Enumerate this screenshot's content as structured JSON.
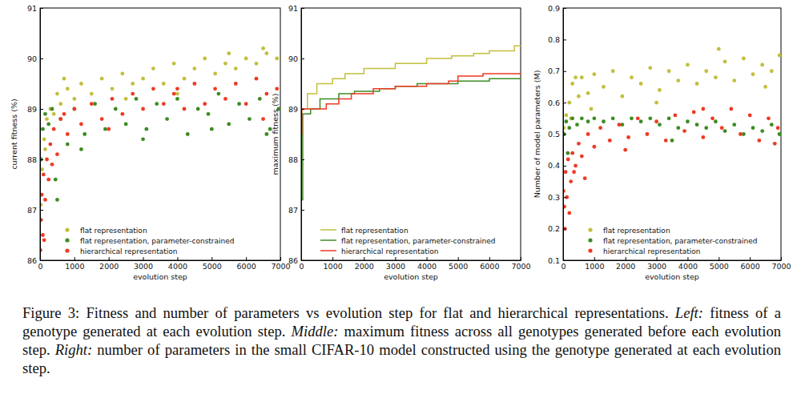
{
  "chart_data": [
    {
      "type": "scatter",
      "xlabel": "evolution step",
      "ylabel": "current fitness (%)",
      "xlim": [
        0,
        7000
      ],
      "xticks": [
        0,
        1000,
        2000,
        3000,
        4000,
        5000,
        6000,
        7000
      ],
      "ylim": [
        86,
        91
      ],
      "yticks": [
        86,
        87,
        88,
        89,
        90,
        91
      ],
      "legend": "lower left",
      "series": [
        {
          "name": "flat representation",
          "color": "#c2bf3c",
          "marker": "circle",
          "x": [
            20,
            60,
            120,
            200,
            300,
            400,
            500,
            600,
            800,
            1000,
            1200,
            1500,
            1800,
            2100,
            2400,
            2700,
            3000,
            3300,
            3600,
            3900,
            4200,
            4500,
            4800,
            5100,
            5400,
            5700,
            6000,
            6300,
            6600,
            6900,
            150,
            700,
            2500,
            4000,
            5500,
            6500
          ],
          "values": [
            87.1,
            87.8,
            88.4,
            88.8,
            89.0,
            88.9,
            89.3,
            89.1,
            89.4,
            89.2,
            89.5,
            89.3,
            89.6,
            89.4,
            89.7,
            89.5,
            89.6,
            89.8,
            89.5,
            89.9,
            89.6,
            89.8,
            90.0,
            89.7,
            89.9,
            89.8,
            90.0,
            89.9,
            90.1,
            90.0,
            88.2,
            89.6,
            89.2,
            89.3,
            90.1,
            90.2
          ]
        },
        {
          "name": "flat representation, parameter-constrained",
          "color": "#3d8c24",
          "marker": "circle",
          "x": [
            30,
            80,
            150,
            250,
            350,
            450,
            600,
            800,
            1000,
            1300,
            1600,
            1900,
            2200,
            2500,
            2800,
            3100,
            3400,
            3700,
            4000,
            4300,
            4600,
            4900,
            5200,
            5500,
            5800,
            6100,
            6400,
            6700,
            6950,
            500,
            1200,
            3000,
            5000,
            6600
          ],
          "values": [
            88.0,
            88.6,
            88.9,
            88.7,
            89.0,
            87.6,
            88.8,
            88.3,
            89.0,
            88.5,
            89.1,
            88.6,
            89.0,
            88.7,
            89.2,
            88.6,
            89.1,
            88.8,
            89.2,
            88.5,
            89.0,
            88.9,
            89.3,
            88.7,
            89.1,
            88.8,
            89.2,
            88.6,
            89.0,
            87.2,
            88.2,
            88.4,
            88.6,
            88.5
          ]
        },
        {
          "name": "hierarchical representation",
          "color": "#ee3a24",
          "marker": "circle",
          "x": [
            10,
            30,
            50,
            80,
            100,
            150,
            200,
            250,
            300,
            400,
            500,
            600,
            800,
            1000,
            1200,
            1500,
            1800,
            2100,
            2400,
            2700,
            3000,
            3300,
            3600,
            3900,
            4200,
            4500,
            4800,
            5100,
            5400,
            5700,
            6000,
            6300,
            6600,
            6900,
            120,
            350,
            700,
            2000,
            4000,
            6500
          ],
          "values": [
            86.2,
            86.8,
            87.3,
            86.5,
            87.7,
            87.2,
            88.0,
            87.6,
            88.3,
            88.6,
            88.1,
            88.8,
            88.5,
            89.0,
            88.7,
            89.1,
            88.8,
            89.2,
            88.9,
            89.3,
            89.0,
            89.4,
            89.1,
            89.3,
            89.0,
            89.5,
            89.1,
            89.4,
            89.2,
            89.5,
            89.1,
            89.6,
            89.3,
            89.4,
            86.4,
            87.9,
            88.9,
            88.6,
            89.4,
            88.8
          ]
        }
      ]
    },
    {
      "type": "line",
      "xlabel": "evolution step",
      "ylabel": "maximum fitness (%)",
      "xlim": [
        0,
        7000
      ],
      "xticks": [
        0,
        1000,
        2000,
        3000,
        4000,
        5000,
        6000,
        7000
      ],
      "ylim": [
        86,
        91
      ],
      "yticks": [
        86,
        87,
        88,
        89,
        90,
        91
      ],
      "legend": "lower left",
      "series": [
        {
          "name": "flat representation",
          "color": "#c2bf3c",
          "line_style": "steps",
          "x": [
            0,
            10,
            200,
            500,
            1000,
            1400,
            2000,
            3000,
            4000,
            4800,
            5500,
            6000,
            6800,
            7000
          ],
          "values": [
            87.2,
            89.0,
            89.3,
            89.5,
            89.6,
            89.7,
            89.8,
            89.9,
            90.0,
            90.05,
            90.1,
            90.15,
            90.25,
            90.25
          ]
        },
        {
          "name": "flat representation, parameter-constrained",
          "color": "#3d8c24",
          "line_style": "steps",
          "x": [
            0,
            50,
            300,
            600,
            1200,
            1700,
            2500,
            3000,
            3700,
            5000,
            6000,
            7000
          ],
          "values": [
            87.2,
            88.9,
            89.0,
            89.2,
            89.3,
            89.35,
            89.4,
            89.45,
            89.5,
            89.55,
            89.6,
            89.6
          ]
        },
        {
          "name": "hierarchical representation",
          "color": "#ee3a24",
          "line_style": "steps",
          "x": [
            0,
            20,
            800,
            1200,
            1600,
            2300,
            3000,
            4000,
            4700,
            5000,
            5800,
            7000
          ],
          "values": [
            88.5,
            89.0,
            89.1,
            89.2,
            89.3,
            89.4,
            89.45,
            89.5,
            89.55,
            89.65,
            89.7,
            89.7
          ]
        }
      ]
    },
    {
      "type": "scatter",
      "xlabel": "evolution step",
      "ylabel": "Number of model parameters (M)",
      "xlim": [
        0,
        7000
      ],
      "xticks": [
        0,
        1000,
        2000,
        3000,
        4000,
        5000,
        6000,
        7000
      ],
      "ylim": [
        0.1,
        0.9
      ],
      "yticks": [
        0.1,
        0.2,
        0.3,
        0.4,
        0.5,
        0.6,
        0.7,
        0.8,
        0.9
      ],
      "legend": "lower left",
      "series": [
        {
          "name": "flat representation",
          "color": "#c2bf3c",
          "marker": "circle",
          "x": [
            20,
            100,
            200,
            300,
            400,
            500,
            600,
            800,
            1000,
            1300,
            1600,
            1900,
            2200,
            2500,
            2800,
            3100,
            3400,
            3700,
            4000,
            4300,
            4600,
            4900,
            5200,
            5500,
            5800,
            6100,
            6400,
            6700,
            6950,
            250,
            900,
            3000,
            5000,
            6500
          ],
          "values": [
            0.52,
            0.56,
            0.6,
            0.66,
            0.68,
            0.62,
            0.68,
            0.63,
            0.69,
            0.65,
            0.7,
            0.62,
            0.68,
            0.66,
            0.71,
            0.64,
            0.7,
            0.67,
            0.72,
            0.66,
            0.7,
            0.68,
            0.73,
            0.67,
            0.74,
            0.69,
            0.72,
            0.7,
            0.75,
            0.55,
            0.58,
            0.6,
            0.77,
            0.65
          ]
        },
        {
          "name": "flat representation, parameter-constrained",
          "color": "#3d8c24",
          "marker": "circle",
          "x": [
            30,
            100,
            200,
            300,
            450,
            600,
            800,
            1000,
            1300,
            1600,
            1900,
            2200,
            2500,
            2800,
            3100,
            3400,
            3700,
            4000,
            4300,
            4600,
            4900,
            5200,
            5500,
            5800,
            6100,
            6400,
            6700,
            6950,
            150,
            3500
          ],
          "values": [
            0.5,
            0.54,
            0.52,
            0.55,
            0.53,
            0.55,
            0.54,
            0.55,
            0.54,
            0.55,
            0.53,
            0.55,
            0.54,
            0.55,
            0.53,
            0.55,
            0.52,
            0.54,
            0.53,
            0.52,
            0.54,
            0.51,
            0.53,
            0.5,
            0.52,
            0.51,
            0.53,
            0.5,
            0.44,
            0.48
          ]
        },
        {
          "name": "hierarchical representation",
          "color": "#ee3a24",
          "marker": "circle",
          "x": [
            10,
            40,
            80,
            120,
            160,
            200,
            250,
            300,
            400,
            500,
            600,
            800,
            1000,
            1200,
            1500,
            1800,
            2100,
            2400,
            2700,
            3000,
            3300,
            3600,
            3900,
            4200,
            4500,
            4800,
            5100,
            5400,
            5700,
            6000,
            6300,
            6600,
            6900,
            60,
            350,
            700,
            2000,
            4500,
            6800
          ],
          "values": [
            0.32,
            0.27,
            0.38,
            0.3,
            0.42,
            0.25,
            0.35,
            0.44,
            0.4,
            0.47,
            0.43,
            0.5,
            0.46,
            0.52,
            0.48,
            0.53,
            0.49,
            0.55,
            0.5,
            0.54,
            0.48,
            0.56,
            0.51,
            0.57,
            0.49,
            0.55,
            0.52,
            0.58,
            0.5,
            0.56,
            0.48,
            0.55,
            0.52,
            0.2,
            0.38,
            0.36,
            0.45,
            0.58,
            0.47
          ]
        }
      ]
    }
  ],
  "caption": {
    "label": "Figure 3:",
    "text": "Fitness and number of parameters vs evolution step for flat and hierarchical representations.",
    "parts": [
      {
        "heading": "Left:",
        "text": "fitness of a genotype generated at each evolution step."
      },
      {
        "heading": "Middle:",
        "text": "maximum fitness across all genotypes generated before each evolution step."
      },
      {
        "heading": "Right:",
        "text": "number of parameters in the small CIFAR-10 model constructed using the genotype generated at each evolution step."
      }
    ]
  }
}
